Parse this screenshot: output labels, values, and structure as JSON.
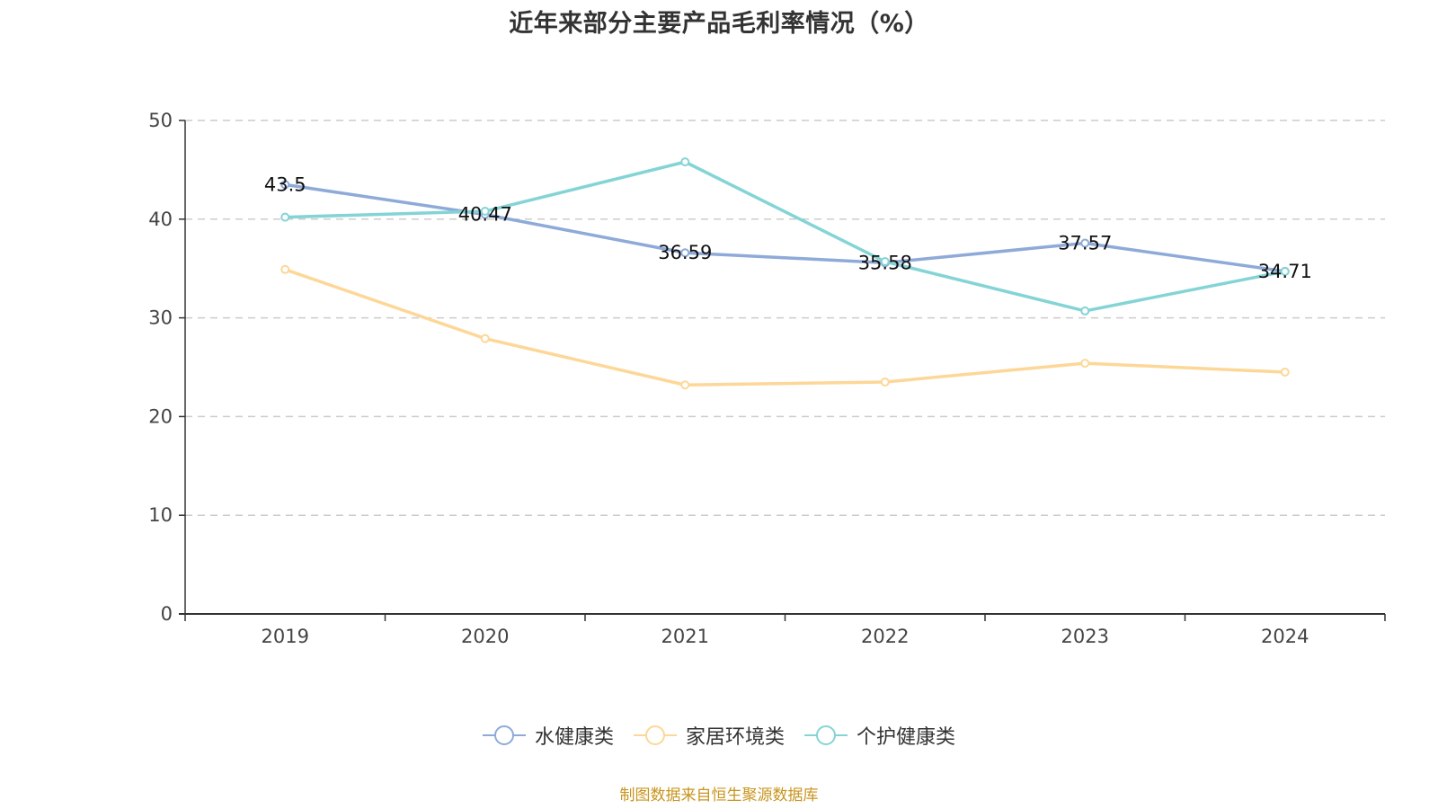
{
  "chart_data": {
    "type": "line",
    "title": "近年来部分主要产品毛利率情况（%）",
    "xlabel": "",
    "ylabel": "",
    "categories": [
      "2019",
      "2020",
      "2021",
      "2022",
      "2023",
      "2024"
    ],
    "ylim": [
      0,
      50
    ],
    "yticks": [
      0,
      10,
      20,
      30,
      40,
      50
    ],
    "grid": true,
    "legend_position": "bottom-center",
    "series": [
      {
        "name": "水健康类",
        "color": "#8eaad8",
        "values": [
          43.5,
          40.47,
          36.59,
          35.58,
          37.57,
          34.71
        ],
        "show_labels": true
      },
      {
        "name": "家居环境类",
        "color": "#fdd797",
        "values": [
          34.9,
          27.9,
          23.2,
          23.5,
          25.4,
          24.5
        ],
        "show_labels": false
      },
      {
        "name": "个护健康类",
        "color": "#84d4d6",
        "values": [
          40.2,
          40.8,
          45.8,
          35.7,
          30.7,
          34.7
        ],
        "show_labels": false
      }
    ],
    "source": "制图数据来自恒生聚源数据库"
  }
}
